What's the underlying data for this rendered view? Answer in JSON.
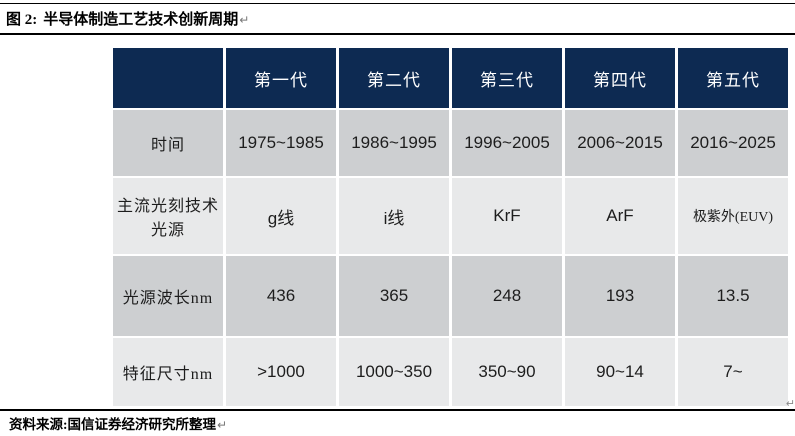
{
  "figure": {
    "label": "图 2:",
    "title": "半导体制造工艺技术创新周期"
  },
  "marks": {
    "return_glyph": "↵"
  },
  "source": {
    "text": "资料来源:国信证券经济研究所整理"
  },
  "chart_data": {
    "type": "table",
    "title": "半导体制造工艺技术创新周期",
    "column_headers": [
      "",
      "第一代",
      "第二代",
      "第三代",
      "第四代",
      "第五代"
    ],
    "rows": [
      {
        "label": "时间",
        "values": [
          "1975~1985",
          "1986~1995",
          "1996~2005",
          "2006~2015",
          "2016~2025"
        ]
      },
      {
        "label": "主流光刻技术光源",
        "values": [
          "g线",
          "i线",
          "KrF",
          "ArF",
          "极紫外(EUV)"
        ]
      },
      {
        "label": "光源波长nm",
        "values": [
          "436",
          "365",
          "248",
          "193",
          "13.5"
        ]
      },
      {
        "label": "特征尺寸nm",
        "values": [
          ">1000",
          "1000~350",
          "350~90",
          "90~14",
          "7~"
        ]
      }
    ],
    "layout": {
      "header_row": "dark navy with white text",
      "row_striping": [
        "medium-gray",
        "light-gray"
      ],
      "first_column": "row labels, same stripe color as row"
    }
  },
  "colors": {
    "header_bg": "#0d2a52",
    "header_text": "#ffffff",
    "row_dark_bg": "#cdcfd1",
    "row_light_bg": "#e8e9ea",
    "body_text": "#1d1d1d",
    "rule": "#000000"
  }
}
